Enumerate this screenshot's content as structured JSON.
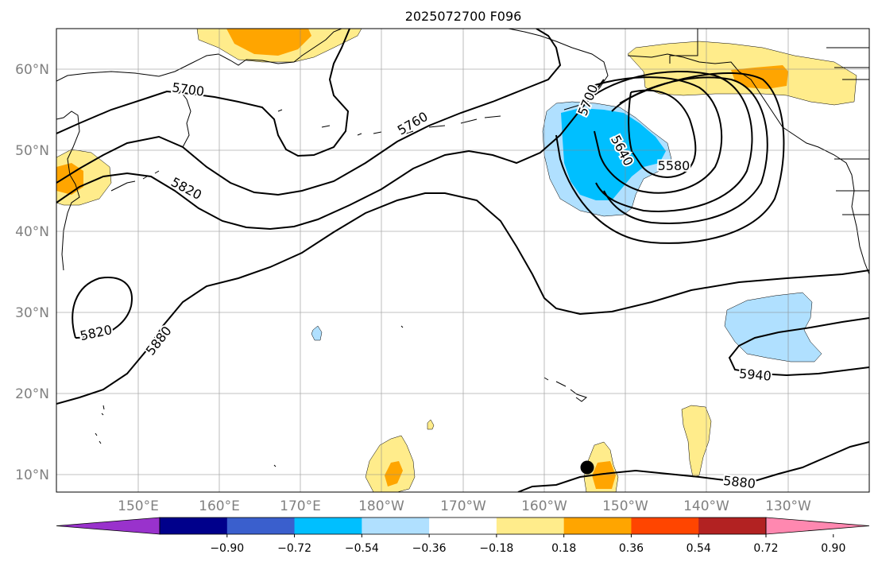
{
  "title": "2025072700 F096",
  "map": {
    "lat_labels": [
      "60°N",
      "50°N",
      "40°N",
      "30°N",
      "20°N",
      "10°N"
    ],
    "lon_labels": [
      "150°E",
      "160°E",
      "170°E",
      "180°W",
      "170°W",
      "160°W",
      "150°W",
      "140°W",
      "130°W"
    ],
    "contour_labels": [
      "5700",
      "5760",
      "5700",
      "5640",
      "5580",
      "5820",
      "5820",
      "5880",
      "5940",
      "5880"
    ],
    "marker": "storm-position-dot"
  },
  "colorbar": {
    "ticks": [
      "−0.90",
      "−0.72",
      "−0.54",
      "−0.36",
      "−0.18",
      "0.18",
      "0.36",
      "0.54",
      "0.72",
      "0.90"
    ],
    "colors": [
      "#9932cc",
      "#00008b",
      "#3a5fcd",
      "#00bfff",
      "#b0e0ff",
      "#ffffff",
      "#ffec8b",
      "#ffa500",
      "#ff4500",
      "#b22222",
      "#ff88b0"
    ]
  }
}
